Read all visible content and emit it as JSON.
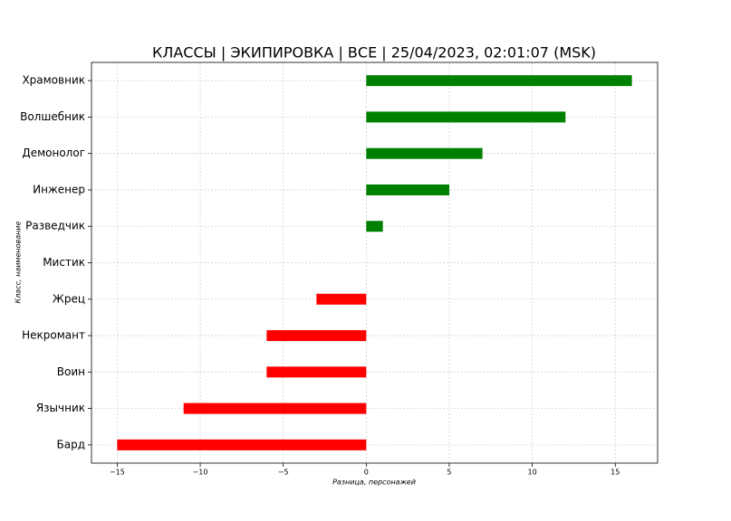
{
  "chart_data": {
    "type": "barh",
    "title": "КЛАССЫ | ЭКИПИРОВКА | ВСЕ | 25/04/2023, 02:01:07 (MSK)",
    "xlabel": "Разница, персонажей",
    "ylabel": "Класс, наименование",
    "categories": [
      "Храмовник",
      "Волшебник",
      "Демонолог",
      "Инженер",
      "Разведчик",
      "Мистик",
      "Жрец",
      "Некромант",
      "Воин",
      "Язычник",
      "Бард"
    ],
    "values": [
      16,
      12,
      7,
      5,
      1,
      0,
      -3,
      -6,
      -6,
      -11,
      -15
    ],
    "colors": [
      "#008000",
      "#008000",
      "#008000",
      "#008000",
      "#008000",
      "#008000",
      "#ff0000",
      "#ff0000",
      "#ff0000",
      "#ff0000",
      "#ff0000"
    ],
    "xlim": [
      -16.55,
      17.55
    ],
    "xticks": [
      {
        "value": -15,
        "label": "−15"
      },
      {
        "value": -10,
        "label": "−10"
      },
      {
        "value": -5,
        "label": "−5"
      },
      0,
      5,
      10,
      15
    ],
    "grid": true
  }
}
